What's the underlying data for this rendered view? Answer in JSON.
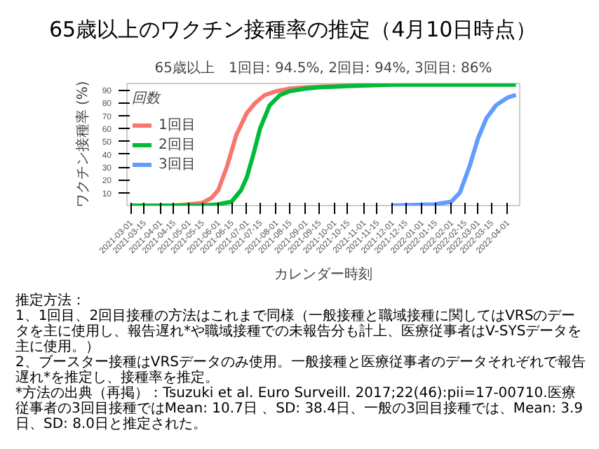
{
  "chart_data": {
    "type": "line",
    "title": "65歳以上のワクチン接種率の推定（4月10日時点）",
    "subtitle": "65歳以上　1回目: 94.5%, 2回目: 94%, 3回目: 86%",
    "xlabel": "カレンダー時刻",
    "ylabel": "ワクチン接種率 (%)",
    "legend_title": "回数",
    "legend": "top left",
    "grid": false,
    "xlim": [
      "2021-02-25",
      "2022-04-14"
    ],
    "ylim": [
      0,
      95
    ],
    "xticks": [
      "2021-03-01",
      "2021-03-15",
      "2021-04-01",
      "2021-04-15",
      "2021-05-01",
      "2021-05-15",
      "2021-06-01",
      "2021-06-15",
      "2021-07-01",
      "2021-07-15",
      "2021-08-01",
      "2021-08-15",
      "2021-09-01",
      "2021-09-15",
      "2021-10-01",
      "2021-10-15",
      "2021-11-01",
      "2021-11-15",
      "2021-12-01",
      "2021-12-15",
      "2022-01-01",
      "2022-01-15",
      "2022-02-01",
      "2022-02-15",
      "2022-03-01",
      "2022-03-15",
      "2022-04-01"
    ],
    "yticks": [
      10,
      20,
      30,
      40,
      50,
      60,
      70,
      80,
      90
    ],
    "series": [
      {
        "name": "1回目",
        "color": "#f8766d",
        "x": [
          "2021-03-01",
          "2021-04-15",
          "2021-05-01",
          "2021-05-15",
          "2021-05-25",
          "2021-06-01",
          "2021-06-10",
          "2021-06-20",
          "2021-07-01",
          "2021-07-10",
          "2021-07-20",
          "2021-08-01",
          "2021-08-15",
          "2021-09-01",
          "2021-10-01",
          "2021-11-01",
          "2021-12-01"
        ],
        "values": [
          0,
          0,
          1,
          2,
          6,
          12,
          30,
          55,
          72,
          80,
          86,
          89,
          91,
          92,
          93,
          94,
          94
        ]
      },
      {
        "name": "2回目",
        "color": "#00ba38",
        "x": [
          "2021-03-01",
          "2021-05-15",
          "2021-06-01",
          "2021-06-15",
          "2021-06-25",
          "2021-07-01",
          "2021-07-08",
          "2021-07-15",
          "2021-07-25",
          "2021-08-05",
          "2021-08-15",
          "2021-09-01",
          "2021-09-15",
          "2021-10-15",
          "2021-12-01",
          "2022-04-10"
        ],
        "values": [
          0,
          0,
          1,
          3,
          12,
          22,
          40,
          60,
          78,
          86,
          89,
          91,
          92,
          93,
          94,
          94
        ]
      },
      {
        "name": "3回目",
        "color": "#619cff",
        "x": [
          "2021-12-01",
          "2022-01-15",
          "2022-02-01",
          "2022-02-10",
          "2022-02-20",
          "2022-03-01",
          "2022-03-10",
          "2022-03-20",
          "2022-04-01",
          "2022-04-10"
        ],
        "values": [
          0,
          1,
          3,
          10,
          30,
          52,
          68,
          78,
          84,
          86
        ]
      }
    ],
    "annotations": [
      "推定方法：",
      "1、1回目、2回目接種の方法はこれまで同様（一般接種と職域接種に関してはVRSのデータを主に使用し、報告遅れ*や職域接種での未報告分も計上、医療従事者はV-SYSデータを主に使用。）",
      "2、ブースター接種はVRSデータのみ使用。一般接種と医療従事者のデータそれぞれで報告遅れ*を推定し、接種率を推定。",
      "*方法の出典（再掲）：Tsuzuki et al. Euro Surveill. 2017;22(46):pii=17-00710.医療従事者の3回目接種ではMean: 10.7日 、SD: 38.4日、一般の3回目接種では、Mean: 3.9日、SD: 8.0日と推定された。"
    ]
  }
}
